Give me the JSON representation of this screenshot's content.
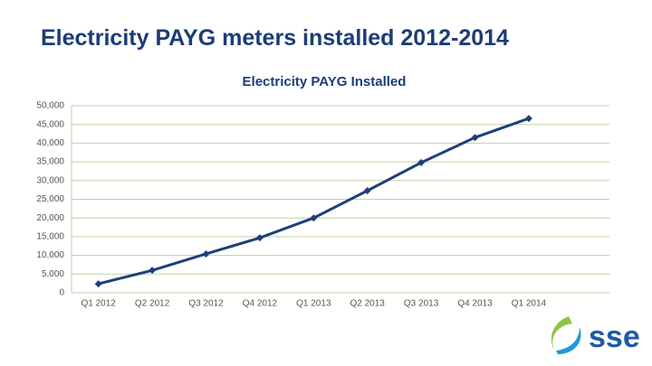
{
  "slide_title": "Electricity PAYG meters installed 2012-2014",
  "logo": "sse",
  "chart_data": {
    "type": "line",
    "title": "Electricity PAYG Installed",
    "categories": [
      "Q1 2012",
      "Q2 2012",
      "Q3 2012",
      "Q4 2012",
      "Q1 2013",
      "Q2 2013",
      "Q3 2013",
      "Q4 2013",
      "Q1 2014"
    ],
    "values": [
      2400,
      6000,
      10400,
      14700,
      20000,
      27300,
      34800,
      41500,
      46600
    ],
    "color": "#1f3f7a",
    "ylim": [
      0,
      50000
    ],
    "yticks": [
      0,
      {
        "value": 5000,
        "label": "5,000"
      },
      {
        "value": 10000,
        "label": "10,000"
      },
      {
        "value": 15000,
        "label": "15,000"
      },
      {
        "value": 20000,
        "label": "20,000"
      },
      {
        "value": 25000,
        "label": "25,000"
      },
      {
        "value": 30000,
        "label": "30,000"
      },
      {
        "value": 35000,
        "label": "35,000"
      },
      {
        "value": 40000,
        "label": "40,000"
      },
      {
        "value": 45000,
        "label": "45,000"
      },
      {
        "value": 50000,
        "label": "50,000"
      }
    ],
    "grid": true
  }
}
